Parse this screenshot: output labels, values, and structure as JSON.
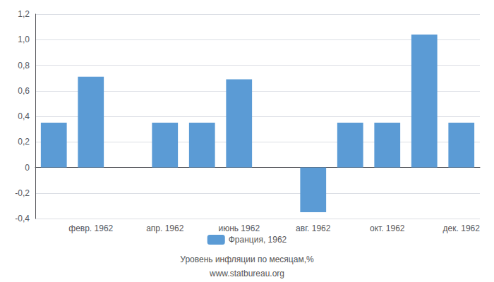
{
  "chart_data": {
    "type": "bar",
    "categories": [
      null,
      "февр. 1962",
      null,
      "апр. 1962",
      null,
      "июнь 1962",
      null,
      "авг. 1962",
      null,
      "окт. 1962",
      null,
      "дек. 1962"
    ],
    "series": [
      {
        "name": "Франция, 1962",
        "color": "#5b9bd5",
        "values": [
          0.35,
          0.71,
          0.0,
          0.35,
          0.35,
          0.69,
          0.0,
          -0.35,
          0.35,
          0.35,
          1.04,
          0.35
        ]
      }
    ],
    "ylim": [
      -0.4,
      1.2
    ],
    "yticks": [
      {
        "value": -0.4,
        "label": "-0,4"
      },
      {
        "value": -0.2,
        "label": "-0,2"
      },
      0,
      {
        "value": 0.2,
        "label": "0,2"
      },
      {
        "value": 0.4,
        "label": "0,4"
      },
      {
        "value": 0.6,
        "label": "0,6"
      },
      {
        "value": 0.8,
        "label": "0,8"
      },
      {
        "value": 1.0,
        "label": "1,0"
      },
      {
        "value": 1.2,
        "label": "1,2"
      }
    ],
    "grid": true,
    "legend": "bottom",
    "annotations": [
      "Уровень инфляции по месяцам,%",
      "www.statbureau.org"
    ]
  }
}
